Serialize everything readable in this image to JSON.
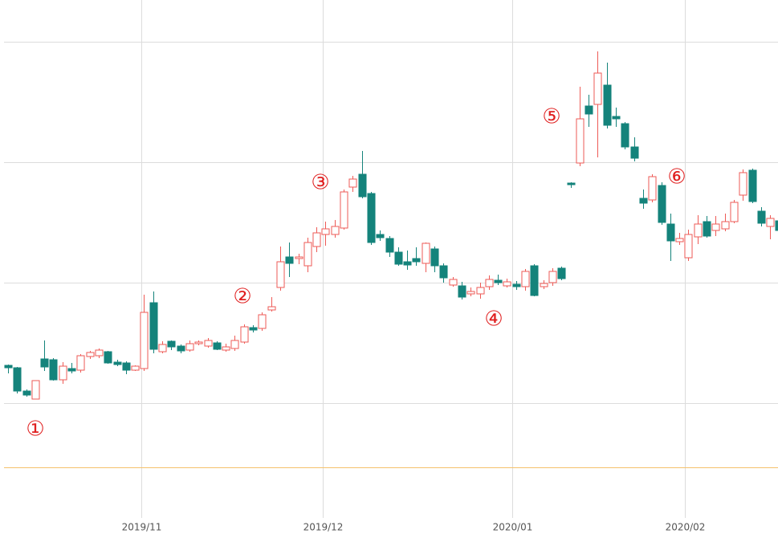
{
  "chart_data": {
    "type": "candlestick",
    "open": [
      47,
      44,
      15,
      5,
      55,
      54,
      29,
      43,
      41,
      58,
      59,
      64,
      51,
      50,
      41,
      43,
      125,
      64,
      77,
      71,
      66,
      74,
      71,
      75,
      66,
      68,
      76,
      94,
      93,
      116,
      144,
      182,
      180,
      171,
      195,
      210,
      210,
      218,
      269,
      285,
      261,
      210,
      205,
      188,
      176,
      180,
      174,
      192,
      171,
      147,
      146,
      136,
      136,
      145,
      153,
      146,
      148,
      145,
      171,
      145,
      150,
      168,
      274,
      299,
      370,
      372,
      396,
      357,
      348,
      319,
      255,
      253,
      271,
      223,
      201,
      181,
      207,
      226,
      215,
      217,
      226,
      259,
      290,
      239,
      220,
      227
    ],
    "high": [
      48,
      45,
      17,
      28,
      78,
      56,
      51,
      50,
      61,
      65,
      68,
      65,
      54,
      52,
      47,
      135,
      139,
      77,
      78,
      73,
      78,
      78,
      81,
      77,
      74,
      84,
      98,
      97,
      113,
      132,
      195,
      200,
      186,
      206,
      219,
      226,
      228,
      266,
      283,
      314,
      263,
      215,
      208,
      194,
      190,
      194,
      200,
      195,
      174,
      157,
      151,
      144,
      150,
      159,
      160,
      155,
      152,
      167,
      173,
      153,
      168,
      170,
      275,
      394,
      384,
      438,
      424,
      368,
      350,
      331,
      266,
      285,
      275,
      236,
      212,
      216,
      234,
      233,
      233,
      236,
      253,
      291,
      292,
      244,
      234,
      231
    ],
    "low": [
      37,
      12,
      8,
      5,
      40,
      28,
      24,
      37,
      38,
      55,
      56,
      49,
      46,
      36,
      40,
      40,
      62,
      62,
      66,
      62,
      64,
      72,
      69,
      66,
      64,
      65,
      74,
      88,
      90,
      114,
      140,
      157,
      173,
      163,
      188,
      196,
      206,
      216,
      263,
      255,
      197,
      202,
      182,
      171,
      166,
      171,
      163,
      163,
      150,
      145,
      129,
      133,
      130,
      141,
      147,
      144,
      141,
      140,
      133,
      142,
      146,
      153,
      268,
      295,
      344,
      306,
      342,
      344,
      316,
      301,
      242,
      250,
      222,
      177,
      197,
      177,
      198,
      206,
      208,
      214,
      224,
      252,
      249,
      220,
      204,
      213
    ],
    "close": [
      44,
      15,
      10,
      28,
      45,
      29,
      46,
      40,
      59,
      63,
      66,
      50,
      48,
      41,
      46,
      113,
      67,
      73,
      70,
      65,
      74,
      76,
      78,
      67,
      70,
      78,
      95,
      91,
      110,
      120,
      176,
      174,
      182,
      200,
      212,
      217,
      220,
      263,
      279,
      257,
      200,
      206,
      188,
      173,
      172,
      176,
      199,
      171,
      156,
      154,
      132,
      139,
      144,
      154,
      150,
      151,
      145,
      164,
      134,
      149,
      164,
      155,
      272,
      354,
      360,
      411,
      346,
      354,
      319,
      305,
      249,
      282,
      225,
      202,
      205,
      210,
      223,
      208,
      223,
      226,
      250,
      287,
      251,
      224,
      230,
      215
    ],
    "up_color": "#ee5a56",
    "down_color": "#14837b",
    "xlim": [
      -0.88,
      84.87
    ],
    "xticks": [
      {
        "value": 14.7,
        "label": "2019/11"
      },
      {
        "value": 34.7,
        "label": "2019/12"
      },
      {
        "value": 55.6,
        "label": "2020/01"
      },
      {
        "value": 74.6,
        "label": "2020/02"
      }
    ],
    "ylim": [
      -173,
      502
    ],
    "yticks": [
      0,
      150,
      300,
      450
    ],
    "reference_line": -80,
    "reference_color": "#f5c16c",
    "grid": true,
    "annotations": [
      "①",
      "②",
      "③",
      "④",
      "⑤",
      "⑥"
    ]
  }
}
